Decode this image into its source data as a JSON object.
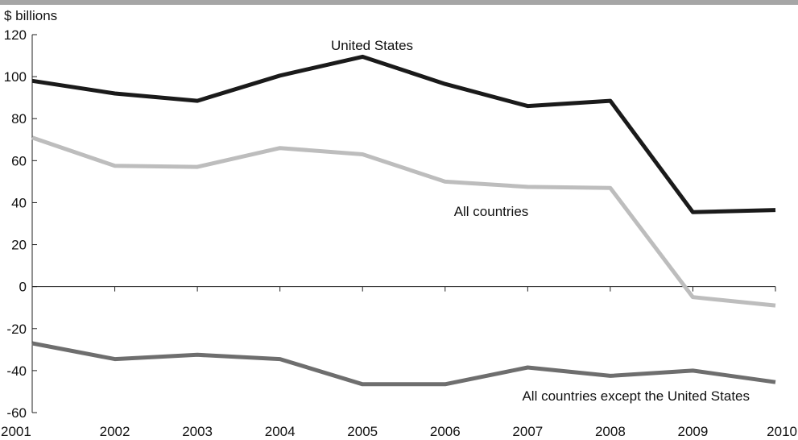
{
  "chart_data": {
    "type": "line",
    "ylabel": "$ billions",
    "ylim": [
      -60,
      120
    ],
    "yticks": [
      120,
      100,
      80,
      60,
      40,
      20,
      0,
      -20,
      -40,
      -60
    ],
    "x": [
      2001,
      2002,
      2003,
      2004,
      2005,
      2006,
      2007,
      2008,
      2009,
      2010
    ],
    "grid": false,
    "series": [
      {
        "name": "United States",
        "color": "#1a1a1a",
        "values": [
          98,
          92,
          88.5,
          100.5,
          109.5,
          96.5,
          86,
          88.5,
          35.5,
          36.5
        ]
      },
      {
        "name": "All countries",
        "color": "#bdbdbd",
        "values": [
          71,
          57.5,
          57,
          66,
          63,
          50,
          47.5,
          47,
          -5,
          -9
        ]
      },
      {
        "name": "All countries except the United States",
        "color": "#6e6e6e",
        "values": [
          -27,
          -34.5,
          -32.5,
          -34.5,
          -46.5,
          -46.5,
          -38.5,
          -42.5,
          -40,
          -45.5
        ]
      }
    ]
  }
}
